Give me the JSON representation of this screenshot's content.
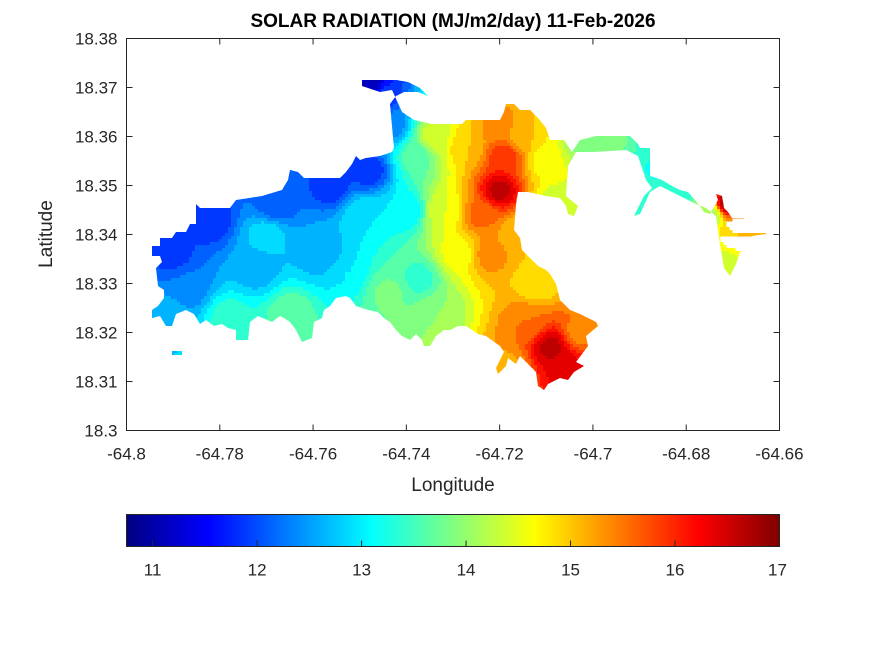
{
  "chart_data": {
    "type": "heatmap",
    "subtype": "filled-contour-map",
    "title": "SOLAR RADIATION (MJ/m2/day) 11-Feb-2026",
    "xlabel": "Longitude",
    "ylabel": "Latitude",
    "xlim": [
      -64.8,
      -64.66
    ],
    "ylim": [
      18.3,
      18.38
    ],
    "xticks": [
      -64.8,
      -64.78,
      -64.76,
      -64.74,
      -64.72,
      -64.7,
      -64.68,
      -64.66
    ],
    "xtick_labels": [
      "-64.8",
      "-64.78",
      "-64.76",
      "-64.74",
      "-64.72",
      "-64.7",
      "-64.68",
      "-64.66"
    ],
    "yticks": [
      18.3,
      18.31,
      18.32,
      18.33,
      18.34,
      18.35,
      18.36,
      18.37,
      18.38
    ],
    "ytick_labels": [
      "18.3",
      "18.31",
      "18.32",
      "18.33",
      "18.34",
      "18.35",
      "18.36",
      "18.37",
      "18.38"
    ],
    "grid": false,
    "colormap": "jet",
    "contour_step": 0.25,
    "colorbar": {
      "orientation": "horizontal",
      "placement": "bottom",
      "clim": [
        10.75,
        17
      ],
      "ticks": [
        11,
        12,
        13,
        14,
        15,
        16,
        17
      ],
      "tick_labels": [
        "11",
        "12",
        "13",
        "14",
        "15",
        "16",
        "17"
      ]
    },
    "field_samples": [
      {
        "lon": -64.748,
        "lat": 18.3705,
        "value": 11.0
      },
      {
        "lon": -64.745,
        "lat": 18.368,
        "value": 11.9
      },
      {
        "lon": -64.743,
        "lat": 18.362,
        "value": 12.4
      },
      {
        "lon": -64.756,
        "lat": 18.35,
        "value": 11.8
      },
      {
        "lon": -64.748,
        "lat": 18.353,
        "value": 11.8
      },
      {
        "lon": -64.768,
        "lat": 18.346,
        "value": 12.0
      },
      {
        "lon": -64.782,
        "lat": 18.343,
        "value": 11.8
      },
      {
        "lon": -64.79,
        "lat": 18.336,
        "value": 11.9
      },
      {
        "lon": -64.787,
        "lat": 18.329,
        "value": 12.3
      },
      {
        "lon": -64.77,
        "lat": 18.34,
        "value": 12.9
      },
      {
        "lon": -64.772,
        "lat": 18.333,
        "value": 12.6
      },
      {
        "lon": -64.758,
        "lat": 18.336,
        "value": 12.5
      },
      {
        "lon": -64.749,
        "lat": 18.344,
        "value": 13.0
      },
      {
        "lon": -64.753,
        "lat": 18.332,
        "value": 13.0
      },
      {
        "lon": -64.778,
        "lat": 18.323,
        "value": 13.4
      },
      {
        "lon": -64.765,
        "lat": 18.324,
        "value": 13.7
      },
      {
        "lon": -64.791,
        "lat": 18.3235,
        "value": 12.7
      },
      {
        "lon": -64.74,
        "lat": 18.345,
        "value": 13.0
      },
      {
        "lon": -64.744,
        "lat": 18.328,
        "value": 13.8
      },
      {
        "lon": -64.737,
        "lat": 18.331,
        "value": 13.4
      },
      {
        "lon": -64.733,
        "lat": 18.324,
        "value": 14.0
      },
      {
        "lon": -64.738,
        "lat": 18.356,
        "value": 13.6
      },
      {
        "lon": -64.734,
        "lat": 18.36,
        "value": 14.4
      },
      {
        "lon": -64.732,
        "lat": 18.345,
        "value": 14.5
      },
      {
        "lon": -64.729,
        "lat": 18.336,
        "value": 14.6
      },
      {
        "lon": -64.727,
        "lat": 18.358,
        "value": 15.0
      },
      {
        "lon": -64.724,
        "lat": 18.344,
        "value": 15.6
      },
      {
        "lon": -64.722,
        "lat": 18.336,
        "value": 15.4
      },
      {
        "lon": -64.72,
        "lat": 18.349,
        "value": 16.6
      },
      {
        "lon": -64.719,
        "lat": 18.356,
        "value": 16.0
      },
      {
        "lon": -64.72,
        "lat": 18.362,
        "value": 15.4
      },
      {
        "lon": -64.715,
        "lat": 18.36,
        "value": 15.0
      },
      {
        "lon": -64.716,
        "lat": 18.34,
        "value": 15.0
      },
      {
        "lon": -64.712,
        "lat": 18.33,
        "value": 14.8
      },
      {
        "lon": -64.714,
        "lat": 18.322,
        "value": 15.5
      },
      {
        "lon": -64.709,
        "lat": 18.317,
        "value": 16.6
      },
      {
        "lon": -64.706,
        "lat": 18.313,
        "value": 16.4
      },
      {
        "lon": -64.703,
        "lat": 18.32,
        "value": 15.4
      },
      {
        "lon": -64.718,
        "lat": 18.313,
        "value": 15.2
      },
      {
        "lon": -64.71,
        "lat": 18.355,
        "value": 14.6
      },
      {
        "lon": -64.708,
        "lat": 18.346,
        "value": 14.3
      },
      {
        "lon": -64.702,
        "lat": 18.359,
        "value": 13.9
      },
      {
        "lon": -64.695,
        "lat": 18.36,
        "value": 13.8
      },
      {
        "lon": -64.688,
        "lat": 18.359,
        "value": 13.4
      },
      {
        "lon": -64.686,
        "lat": 18.354,
        "value": 13.2
      },
      {
        "lon": -64.684,
        "lat": 18.345,
        "value": 13.0
      },
      {
        "lon": -64.68,
        "lat": 18.35,
        "value": 13.4
      },
      {
        "lon": -64.675,
        "lat": 18.344,
        "value": 14.0
      },
      {
        "lon": -64.671,
        "lat": 18.3465,
        "value": 16.8
      },
      {
        "lon": -64.669,
        "lat": 18.341,
        "value": 15.0
      },
      {
        "lon": -64.665,
        "lat": 18.341,
        "value": 15.0
      },
      {
        "lon": -64.672,
        "lat": 18.333,
        "value": 14.3
      }
    ],
    "notes": "Filled contour of interpolated solar radiation over the land area; ocean is blank (white). Peaks near (-64.720, 18.349) and (-64.709, 18.317) ~16.6; minimum near (-64.748, 18.370) ~11."
  }
}
